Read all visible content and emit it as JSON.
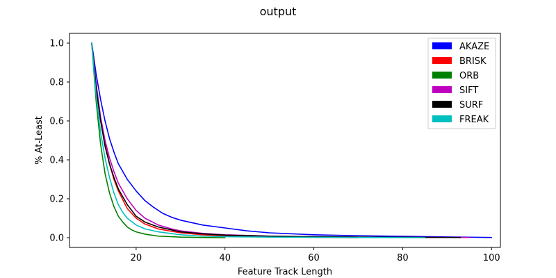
{
  "chart_data": {
    "type": "line",
    "title": "output",
    "xlabel": "Feature Track Length",
    "ylabel": "% At-Least",
    "xlim": [
      5,
      102
    ],
    "ylim": [
      -0.05,
      1.05
    ],
    "xticks": [
      20,
      40,
      60,
      80,
      100
    ],
    "yticks": [
      0.0,
      0.2,
      0.4,
      0.6,
      0.8,
      1.0
    ],
    "grid": false,
    "legend_position": "top-right",
    "series": [
      {
        "name": "AKAZE",
        "color": "#0000ff",
        "x": [
          10,
          11,
          12,
          13,
          14,
          15,
          16,
          18,
          20,
          22,
          24,
          26,
          28,
          30,
          35,
          40,
          45,
          50,
          60,
          70,
          80,
          90,
          100
        ],
        "y": [
          1.0,
          0.84,
          0.71,
          0.6,
          0.51,
          0.44,
          0.38,
          0.3,
          0.24,
          0.19,
          0.155,
          0.125,
          0.105,
          0.09,
          0.065,
          0.05,
          0.035,
          0.025,
          0.015,
          0.01,
          0.007,
          0.004,
          0.001
        ]
      },
      {
        "name": "BRISK",
        "color": "#ff0000",
        "x": [
          10,
          11,
          12,
          13,
          14,
          15,
          16,
          18,
          20,
          22,
          25,
          30,
          35,
          40,
          50,
          60,
          70
        ],
        "y": [
          1.0,
          0.78,
          0.61,
          0.48,
          0.38,
          0.3,
          0.24,
          0.15,
          0.1,
          0.07,
          0.045,
          0.025,
          0.015,
          0.01,
          0.005,
          0.002,
          0.0
        ]
      },
      {
        "name": "ORB",
        "color": "#008000",
        "x": [
          10,
          11,
          12,
          13,
          14,
          15,
          16,
          17,
          18,
          19,
          20,
          22,
          25,
          30,
          35,
          40
        ],
        "y": [
          1.0,
          0.7,
          0.48,
          0.33,
          0.23,
          0.16,
          0.11,
          0.08,
          0.055,
          0.04,
          0.03,
          0.018,
          0.008,
          0.003,
          0.001,
          0.0
        ]
      },
      {
        "name": "SIFT",
        "color": "#bf00bf",
        "x": [
          10,
          11,
          12,
          13,
          14,
          15,
          16,
          18,
          20,
          22,
          25,
          28,
          30,
          35,
          40,
          50,
          60,
          70,
          80,
          95
        ],
        "y": [
          1.0,
          0.79,
          0.62,
          0.5,
          0.41,
          0.34,
          0.28,
          0.2,
          0.14,
          0.1,
          0.065,
          0.045,
          0.035,
          0.022,
          0.015,
          0.008,
          0.005,
          0.003,
          0.002,
          0.001
        ]
      },
      {
        "name": "SURF",
        "color": "#000000",
        "x": [
          10,
          11,
          12,
          13,
          14,
          15,
          16,
          18,
          20,
          22,
          25,
          28,
          30,
          35,
          40,
          50,
          60,
          70,
          80,
          93
        ],
        "y": [
          1.0,
          0.77,
          0.6,
          0.47,
          0.38,
          0.31,
          0.25,
          0.17,
          0.11,
          0.08,
          0.055,
          0.04,
          0.03,
          0.02,
          0.013,
          0.008,
          0.005,
          0.003,
          0.002,
          0.001
        ]
      },
      {
        "name": "FREAK",
        "color": "#00bfbf",
        "x": [
          10,
          11,
          12,
          13,
          14,
          15,
          16,
          17,
          18,
          20,
          22,
          25,
          30,
          35,
          40,
          50,
          60,
          70,
          85
        ],
        "y": [
          1.0,
          0.73,
          0.54,
          0.41,
          0.31,
          0.23,
          0.17,
          0.13,
          0.1,
          0.065,
          0.045,
          0.03,
          0.015,
          0.008,
          0.005,
          0.003,
          0.002,
          0.001,
          0.0
        ]
      }
    ]
  }
}
